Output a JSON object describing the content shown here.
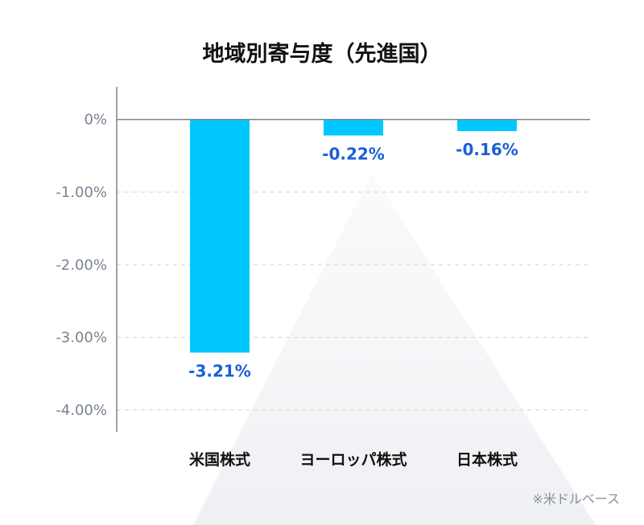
{
  "chart_data": {
    "type": "bar",
    "title": "地域別寄与度（先進国）",
    "categories": [
      "米国株式",
      "ヨーロッパ株式",
      "日本株式"
    ],
    "values": [
      -3.21,
      -0.22,
      -0.16
    ],
    "data_labels": [
      "-3.21%",
      "-0.22%",
      "-0.16%"
    ],
    "ylim": [
      -4.3,
      0.45
    ],
    "yticks": [
      {
        "value": 0,
        "label": "0%"
      },
      {
        "value": -1,
        "label": "-1.00%"
      },
      {
        "value": -2,
        "label": "-2.00%"
      },
      {
        "value": -3,
        "label": "-3.00%"
      },
      {
        "value": -4,
        "label": "-4.00%"
      }
    ],
    "grid": true,
    "xlabel": "",
    "ylabel": "",
    "note": "※米ドルベース",
    "bar_color": "#00c8ff",
    "label_color": "#1a5fd6"
  }
}
